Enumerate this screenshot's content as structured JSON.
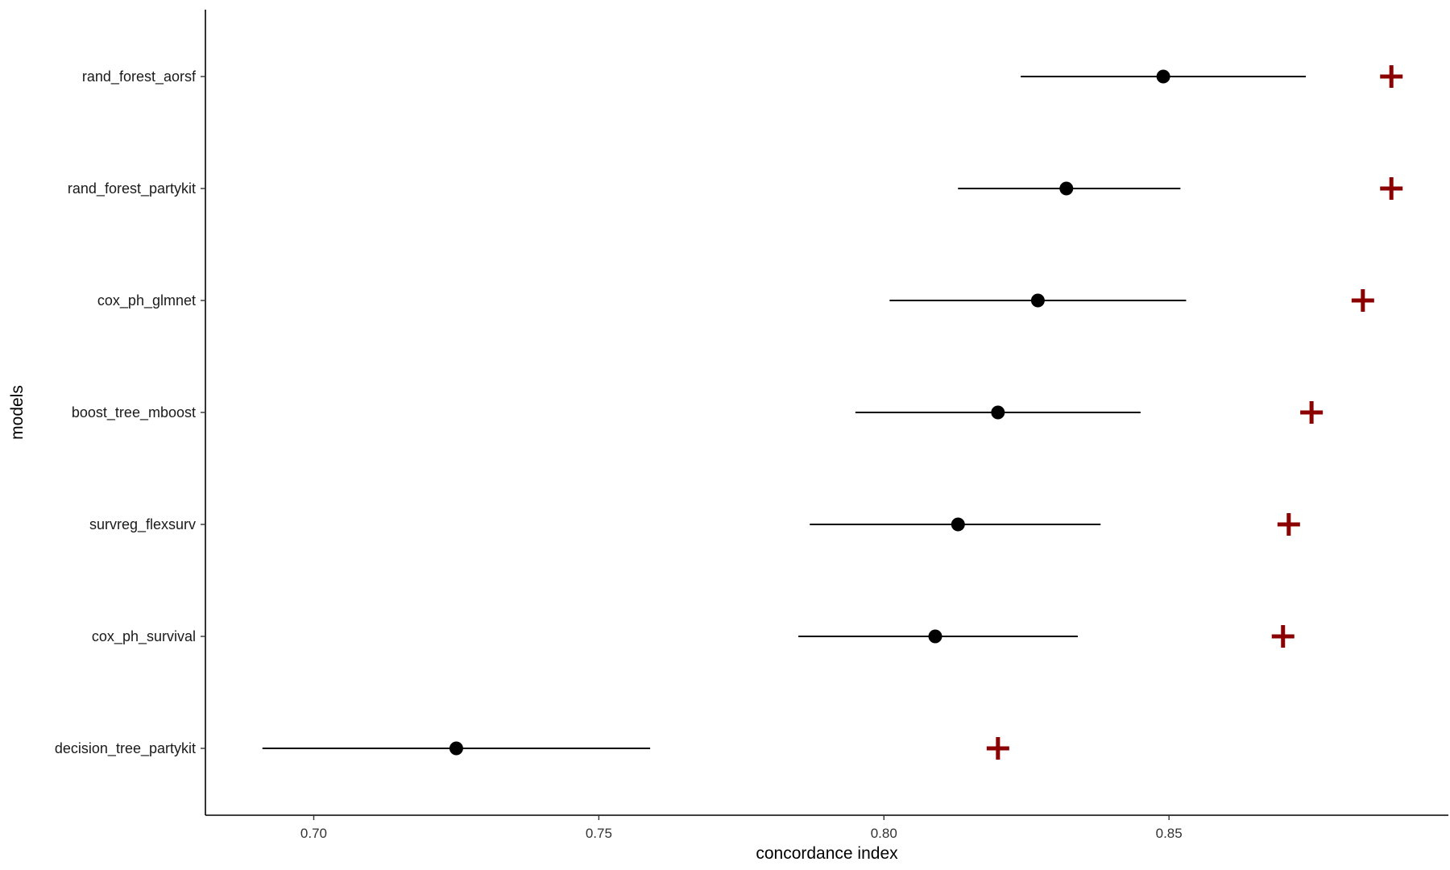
{
  "chart_data": {
    "type": "scatter",
    "title": "",
    "xlabel": "concordance index",
    "ylabel": "models",
    "xlim": [
      0.681,
      0.899
    ],
    "xticks": [
      0.7,
      0.75,
      0.8,
      0.85
    ],
    "xtick_labels": [
      "0.70",
      "0.75",
      "0.80",
      "0.85"
    ],
    "grid": false,
    "legend": "none",
    "categories": [
      "rand_forest_aorsf",
      "rand_forest_partykit",
      "cox_ph_glmnet",
      "boost_tree_mboost",
      "survreg_flexsurv",
      "cox_ph_survival",
      "decision_tree_partykit"
    ],
    "series": [
      {
        "marker": "point-with-interval",
        "color": "#000000",
        "estimate": [
          0.849,
          0.832,
          0.827,
          0.82,
          0.813,
          0.809,
          0.725
        ],
        "lower": [
          0.824,
          0.813,
          0.801,
          0.795,
          0.787,
          0.785,
          0.691
        ],
        "upper": [
          0.874,
          0.852,
          0.853,
          0.845,
          0.838,
          0.834,
          0.759
        ]
      },
      {
        "marker": "plus",
        "color": "#8b0000",
        "values": [
          0.889,
          0.889,
          0.884,
          0.875,
          0.871,
          0.87,
          0.82
        ]
      }
    ]
  }
}
